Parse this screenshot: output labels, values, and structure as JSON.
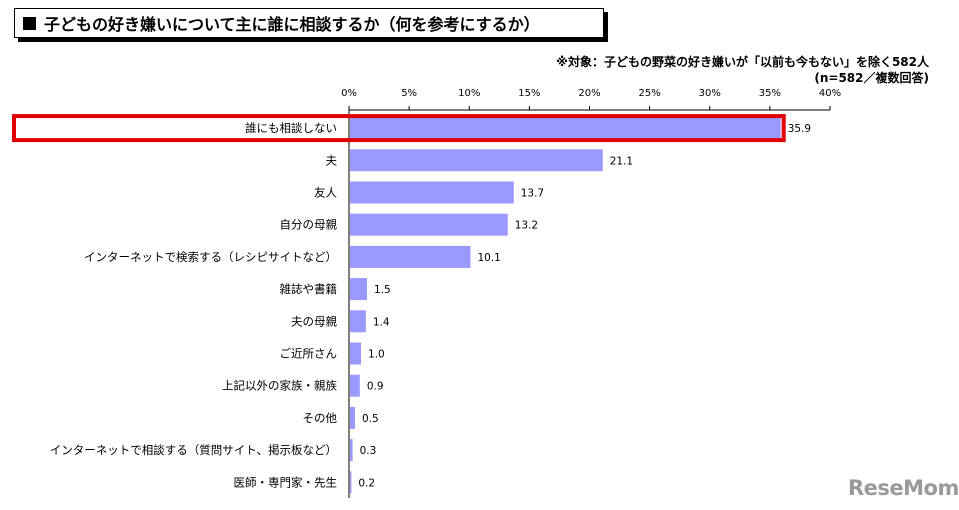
{
  "header": {
    "title": "子どもの好き嫌いについて主に誰に相談するか（何を参考にするか）",
    "note_line1": "※対象：子どもの野菜の好き嫌いが「以前も今もない」を除く582人",
    "note_line2": "(n=582／複数回答)"
  },
  "logo": {
    "text": "ReseMom"
  },
  "colors": {
    "bar": "#9999ff",
    "highlight": "#e00000"
  },
  "chart_data": {
    "type": "bar",
    "orientation": "horizontal",
    "categories": [
      "誰にも相談しない",
      "夫",
      "友人",
      "自分の母親",
      "インターネットで検索する（レシピサイトなど）",
      "雑誌や書籍",
      "夫の母親",
      "ご近所さん",
      "上記以外の家族・親族",
      "その他",
      "インターネットで相談する（質問サイト、掲示板など）",
      "医師・専門家・先生"
    ],
    "values": [
      35.9,
      21.1,
      13.7,
      13.2,
      10.1,
      1.5,
      1.4,
      1.0,
      0.9,
      0.5,
      0.3,
      0.2
    ],
    "value_labels": [
      "35.9",
      "21.1",
      "13.7",
      "13.2",
      "10.1",
      "1.5",
      "1.4",
      "1.0",
      "0.9",
      "0.5",
      "0.3",
      "0.2"
    ],
    "xlim": [
      0,
      40
    ],
    "ticks": [
      0,
      5,
      10,
      15,
      20,
      25,
      30,
      35,
      40
    ],
    "tick_labels": [
      "0%",
      "5%",
      "10%",
      "15%",
      "20%",
      "25%",
      "30%",
      "35%",
      "40%"
    ],
    "highlighted_category": "誰にも相談しない",
    "grid": false
  }
}
